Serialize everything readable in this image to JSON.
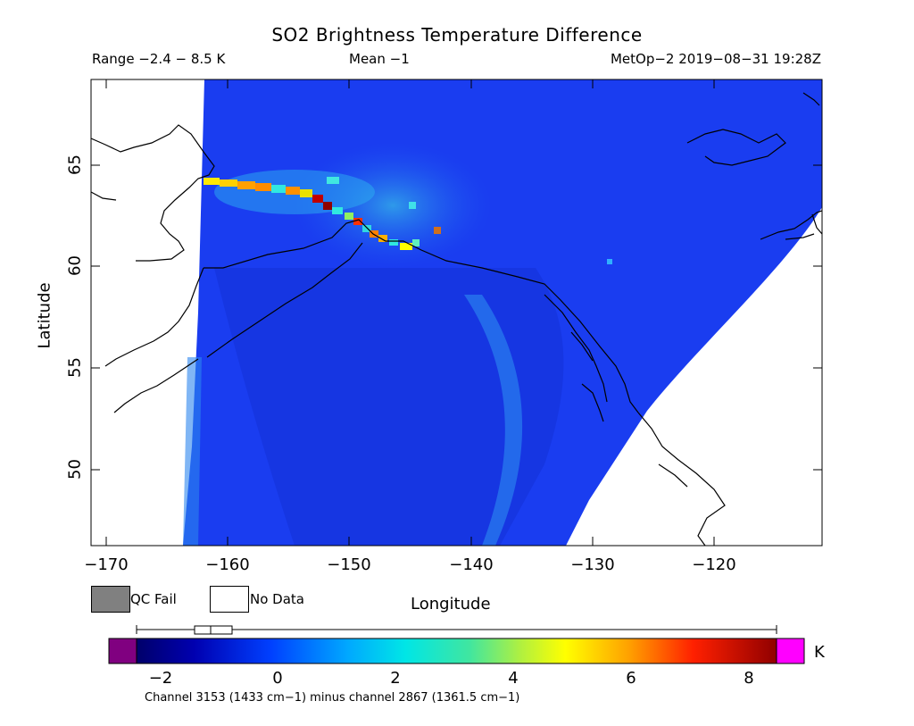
{
  "title": "SO2 Brightness Temperature Difference",
  "header": {
    "range": "Range −2.4 − 8.5 K",
    "mean": "Mean −1",
    "satellite": "MetOp−2 2019−08−31 19:28Z"
  },
  "axes": {
    "ylabel": "Latitude",
    "xlabel": "Longitude",
    "xticks": [
      "−170",
      "−160",
      "−150",
      "−140",
      "−130",
      "−120"
    ],
    "yticks": [
      "65",
      "60",
      "55",
      "50"
    ]
  },
  "legend": {
    "qc_fail": "QC Fail",
    "no_data": "No Data",
    "qc_color": "#808080"
  },
  "colorbar": {
    "ticks": [
      "−2",
      "0",
      "2",
      "4",
      "6",
      "8"
    ],
    "unit": "K",
    "caption": "Channel 3153 (1433 cm−1) minus channel 2867 (1361.5 cm−1)",
    "low_color": "#800080",
    "high_color": "#ff00ff"
  }
}
